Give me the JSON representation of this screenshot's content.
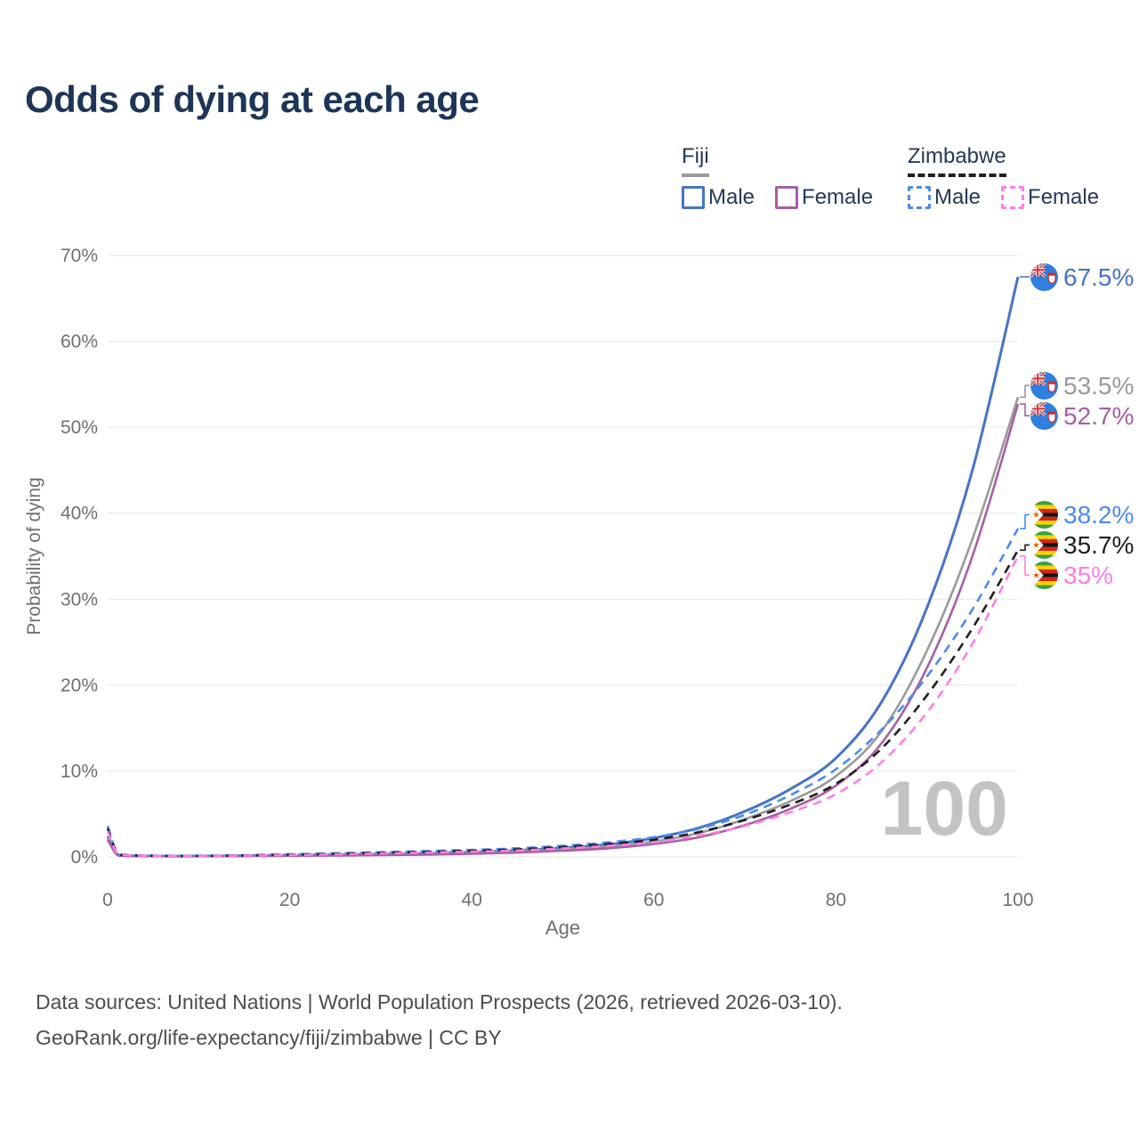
{
  "title": "Odds of dying at each age",
  "legend": {
    "fiji": {
      "title": "Fiji",
      "male": "Male",
      "female": "Female"
    },
    "zimbabwe": {
      "title": "Zimbabwe",
      "male": "Male",
      "female": "Female"
    }
  },
  "colors": {
    "title_text": "#1d3557",
    "legend_text": "#24395a",
    "axis_text": "#6f6f6f",
    "grid": "#ececec",
    "watermark": "#c3c3c3",
    "footer_text": "#4d4d4d"
  },
  "chart_data": {
    "type": "line",
    "title": "Odds of dying at each age",
    "xlabel": "Age",
    "ylabel": "Probability of dying",
    "xlim": [
      0,
      100
    ],
    "ylim": [
      0,
      70
    ],
    "xticks": [
      0,
      20,
      40,
      60,
      80,
      100
    ],
    "yticks": [
      0,
      10,
      20,
      30,
      40,
      50,
      60,
      70
    ],
    "grid": "horizontal-only",
    "legend_position": "top-right",
    "watermark": "100",
    "x": [
      0,
      1,
      2,
      5,
      10,
      15,
      20,
      25,
      30,
      35,
      40,
      45,
      50,
      55,
      60,
      65,
      70,
      75,
      80,
      85,
      90,
      95,
      100
    ],
    "series": [
      {
        "name": "Fiji Male",
        "style": "solid",
        "color": "#4674c6",
        "flag": "fiji",
        "end_label": "67.5%",
        "values": [
          2.4,
          0.35,
          0.15,
          0.1,
          0.1,
          0.15,
          0.2,
          0.25,
          0.32,
          0.4,
          0.55,
          0.75,
          1.05,
          1.45,
          2.2,
          3.4,
          5.3,
          7.9,
          11.5,
          18.0,
          29.0,
          45.0,
          67.5
        ]
      },
      {
        "name": "Fiji",
        "style": "solid",
        "color": "#9a9a9a",
        "flag": "fiji",
        "end_label": "53.5%",
        "values": [
          2.2,
          0.3,
          0.13,
          0.09,
          0.09,
          0.12,
          0.16,
          0.2,
          0.26,
          0.33,
          0.45,
          0.62,
          0.88,
          1.22,
          1.8,
          2.8,
          4.4,
          6.5,
          9.4,
          14.6,
          24.0,
          37.0,
          53.5
        ]
      },
      {
        "name": "Fiji Female",
        "style": "solid",
        "color": "#a75fa4",
        "flag": "fiji",
        "end_label": "52.7%",
        "values": [
          2.0,
          0.28,
          0.12,
          0.08,
          0.08,
          0.1,
          0.13,
          0.16,
          0.21,
          0.27,
          0.37,
          0.51,
          0.72,
          1.0,
          1.5,
          2.3,
          3.7,
          5.6,
          8.3,
          13.2,
          22.0,
          35.0,
          52.7
        ]
      },
      {
        "name": "Zimbabwe Male",
        "style": "dashed",
        "color": "#4b8af2",
        "flag": "zimbabwe",
        "end_label": "38.2%",
        "values": [
          3.6,
          0.55,
          0.25,
          0.15,
          0.13,
          0.2,
          0.3,
          0.42,
          0.55,
          0.68,
          0.82,
          1.0,
          1.3,
          1.7,
          2.3,
          3.3,
          4.9,
          7.2,
          10.2,
          14.8,
          21.0,
          28.8,
          38.2
        ]
      },
      {
        "name": "Zimbabwe",
        "style": "dashed",
        "color": "#1f1f1f",
        "flag": "zimbabwe",
        "end_label": "35.7%",
        "values": [
          3.3,
          0.5,
          0.22,
          0.13,
          0.11,
          0.17,
          0.26,
          0.36,
          0.48,
          0.59,
          0.72,
          0.88,
          1.15,
          1.5,
          2.0,
          2.9,
          4.3,
          6.1,
          8.5,
          12.6,
          18.8,
          26.6,
          35.7
        ]
      },
      {
        "name": "Zimbabwe Female",
        "style": "dashed",
        "color": "#ff7ee3",
        "flag": "zimbabwe",
        "end_label": "35%",
        "values": [
          3.0,
          0.45,
          0.2,
          0.12,
          0.1,
          0.15,
          0.22,
          0.3,
          0.4,
          0.5,
          0.61,
          0.75,
          0.98,
          1.28,
          1.7,
          2.5,
          3.6,
          5.2,
          7.3,
          11.0,
          16.8,
          24.8,
          35.0
        ]
      }
    ]
  },
  "footer": {
    "line1": "Data sources: United Nations | World Population Prospects (2026, retrieved 2026-03-10).",
    "line2": "GeoRank.org/life-expectancy/fiji/zimbabwe | CC BY"
  }
}
